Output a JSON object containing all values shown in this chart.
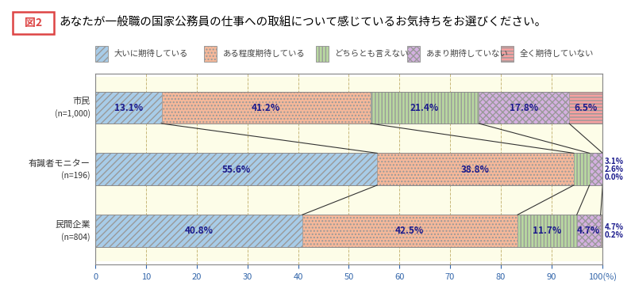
{
  "title": "あなたが一般職の国家公務員の仕事への取組について感じているお気持ちをお選びください。",
  "fig_label": "図2",
  "categories_line1": [
    "市民",
    "有識者モニター",
    "民間企業"
  ],
  "categories_line2": [
    "(n=1,000)",
    "(n=196)",
    "(n=804)"
  ],
  "legend_labels": [
    "大いに期待している",
    "ある程度期待している",
    "どちらとも言えない",
    "あまり期待していない",
    "全く期待していない"
  ],
  "data": [
    [
      13.1,
      41.2,
      21.4,
      17.8,
      6.5
    ],
    [
      55.6,
      38.8,
      3.1,
      2.6,
      0.0
    ],
    [
      40.8,
      42.5,
      11.7,
      4.7,
      0.2
    ]
  ],
  "colors": [
    "#a8cce8",
    "#f5b89a",
    "#b8d8a0",
    "#d4b0e0",
    "#f5a0a0"
  ],
  "hatch_patterns": [
    "////",
    "....",
    "||||",
    "xxxx",
    "----"
  ],
  "bar_bg_color": "#fdfde8",
  "gap_bg_color": "#fdfde8",
  "xlabel_last": "100(%)",
  "xlim": [
    0,
    100
  ],
  "grid_positions": [
    0,
    10,
    20,
    30,
    40,
    50,
    60,
    70,
    80,
    90,
    100
  ],
  "title_fontsize": 10.5,
  "bar_label_fontsize": 8.5,
  "tick_fontsize": 8,
  "legend_fontsize": 7.5,
  "cat_label_fontsize": 8,
  "label_color": "#1a1a8c",
  "grid_color": "#c8b87a",
  "tick_color": "#3366aa",
  "border_color": "#888888",
  "line_color": "#333333",
  "fig2_box_color": "#dd4444",
  "small_label_threshold": 3.5
}
